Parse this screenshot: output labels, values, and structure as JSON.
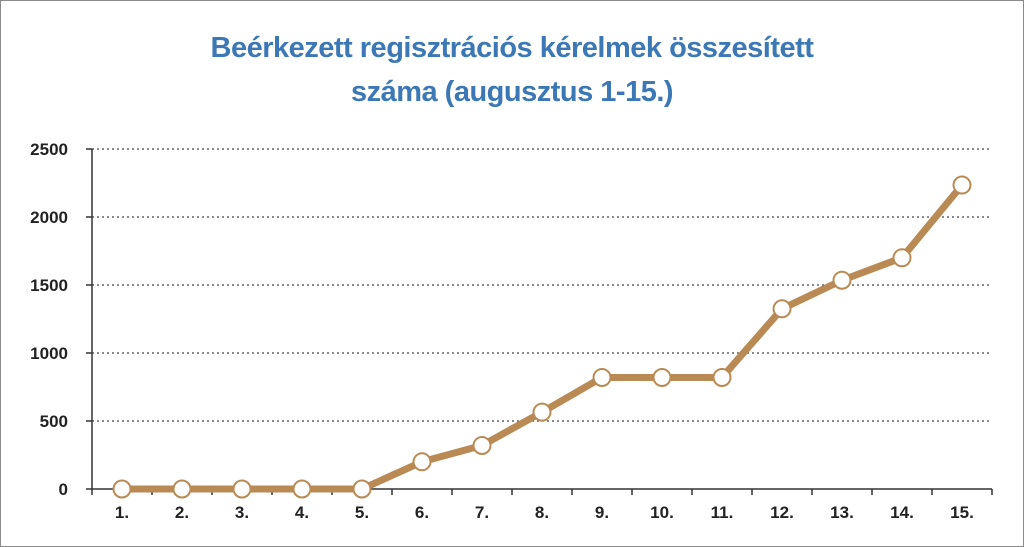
{
  "chart_data": {
    "type": "line",
    "title_lines": [
      "Beérkezett regisztrációs kérelmek összesített",
      "száma (augusztus 1-15.)"
    ],
    "categories": [
      "1.",
      "2.",
      "3.",
      "4.",
      "5.",
      "6.",
      "7.",
      "8.",
      "9.",
      "10.",
      "11.",
      "12.",
      "13.",
      "14.",
      "15."
    ],
    "series": [
      {
        "values": [
          0,
          0,
          0,
          0,
          0,
          200,
          320,
          565,
          820,
          820,
          820,
          1325,
          1535,
          1700,
          2235
        ]
      }
    ],
    "yticks": [
      0,
      500,
      1000,
      1500,
      2000,
      2500
    ],
    "ylim": [
      0,
      2500
    ],
    "grid": true,
    "line_color": "#b98a54",
    "marker_fill": "#ffffff",
    "title_color": "#3b78b5"
  }
}
